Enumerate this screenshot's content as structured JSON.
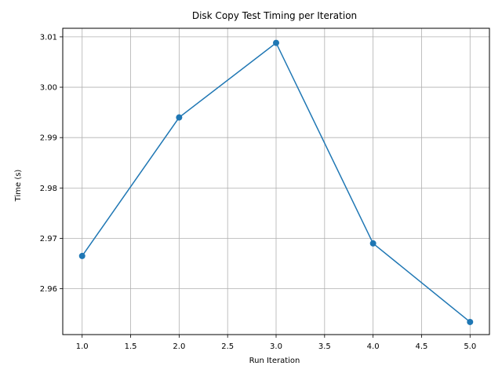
{
  "chart_data": {
    "type": "line",
    "title": "Disk Copy Test Timing per Iteration",
    "xlabel": "Run Iteration",
    "ylabel": "Time (s)",
    "grid": true,
    "xlim": [
      0.8,
      5.2
    ],
    "ylim": [
      2.9509,
      3.0117
    ],
    "x_ticks": [
      "1.0",
      "1.5",
      "2.0",
      "2.5",
      "3.0",
      "3.5",
      "4.0",
      "4.5",
      "5.0"
    ],
    "y_ticks": [
      "2.96",
      "2.97",
      "2.98",
      "2.99",
      "3.00",
      "3.01"
    ],
    "series": [
      {
        "color": "#1f77b4",
        "marker": "circle",
        "x": [
          1,
          2,
          3,
          4,
          5
        ],
        "y": [
          2.9665,
          2.994,
          3.0088,
          2.969,
          2.9534
        ]
      }
    ]
  }
}
